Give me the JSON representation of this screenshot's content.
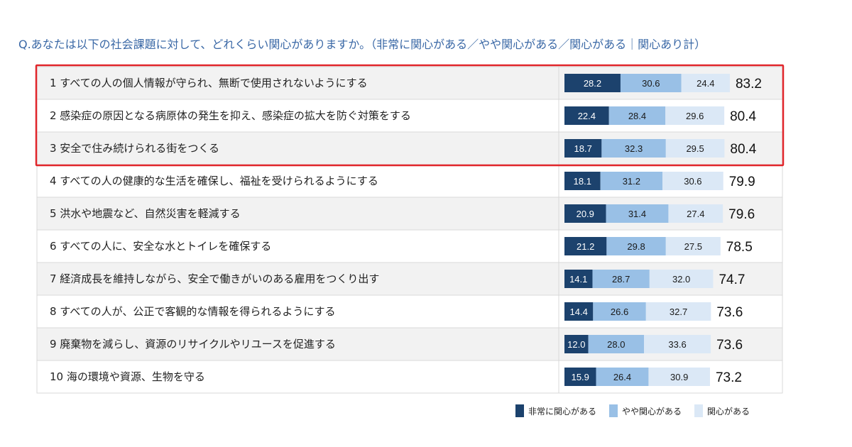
{
  "title": "Q.あなたは以下の社会課題に対して、どれくらい関心がありますか。（非常に関心がある／やや関心がある／関心がある｜関心あり計）",
  "colors": {
    "very": "#1c426d",
    "somewhat": "#99c0e6",
    "interested": "#dbe8f6",
    "highlight": "#e1262b",
    "row_alt": "#f2f2f2",
    "row_plain": "#ffffff",
    "border": "#d9d9d9"
  },
  "legend": [
    {
      "label": "非常に関心がある",
      "color": "#1c426d"
    },
    {
      "label": "やや関心がある",
      "color": "#99c0e6"
    },
    {
      "label": "関心がある",
      "color": "#dbe8f6"
    }
  ],
  "chart_data": {
    "type": "bar",
    "orientation": "horizontal",
    "stacked": true,
    "xlim": [
      0,
      100
    ],
    "categories": [
      "1 すべての人の個人情報が守られ、無断で使用されないようにする",
      "2 感染症の原因となる病原体の発生を抑え、感染症の拡大を防ぐ対策をする",
      "3 安全で住み続けられる街をつくる",
      "4 すべての人の健康的な生活を確保し、福祉を受けられるようにする",
      "5 洪水や地震など、自然災害を軽減する",
      "6 すべての人に、安全な水とトイレを確保する",
      "7 経済成長を維持しながら、安全で働きがいのある雇用をつくり出す",
      "8 すべての人が、公正で客観的な情報を得られるようにする",
      "9 廃棄物を減らし、資源のリサイクルやリユースを促進する",
      "10 海の環境や資源、生物を守る"
    ],
    "series": [
      {
        "name": "非常に関心がある",
        "values": [
          28.2,
          22.4,
          18.7,
          18.1,
          20.9,
          21.2,
          14.1,
          14.4,
          12.0,
          15.9
        ]
      },
      {
        "name": "やや関心がある",
        "values": [
          30.6,
          28.4,
          32.3,
          31.2,
          31.4,
          29.8,
          28.7,
          26.6,
          28.0,
          26.4
        ]
      },
      {
        "name": "関心がある",
        "values": [
          24.4,
          29.6,
          29.5,
          30.6,
          27.4,
          27.5,
          32.0,
          32.7,
          33.6,
          30.9
        ]
      }
    ],
    "totals": [
      83.2,
      80.4,
      80.4,
      79.9,
      79.6,
      78.5,
      74.7,
      73.6,
      73.6,
      73.2
    ],
    "highlighted_rows": [
      1,
      2,
      3
    ],
    "legend_position": "bottom-right"
  }
}
